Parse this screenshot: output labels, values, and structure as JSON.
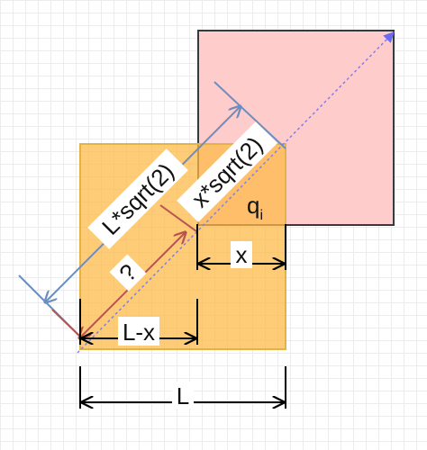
{
  "labels": {
    "diag_big": "L*sqrt(2)",
    "diag_small": "x*sqrt(2)",
    "q_letter": "q",
    "q_subscript": "i",
    "question": "?",
    "x_label": "x",
    "l_minus_x": "L-x",
    "l_label": "L"
  },
  "colors": {
    "orange_square": "#fdc45c",
    "pink_square": "#ffcccc",
    "blue_measure": "#6c8ebf",
    "red_measure": "#b85450",
    "dotted_diagonal": "#7f7fef"
  }
}
